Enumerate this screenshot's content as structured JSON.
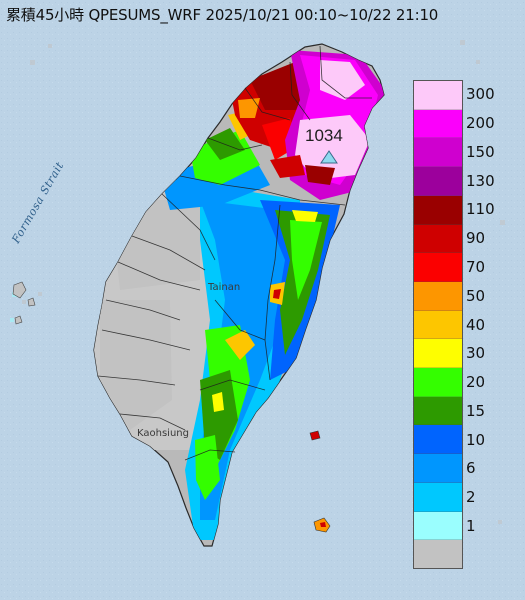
{
  "title": "累積45小時 QPESUMS_WRF 2025/10/21 00:10~10/22 21:10",
  "strait_label": "Formosa Strait",
  "place_labels": {
    "tainan": "Tainan",
    "kaohsiung": "Kaohsiung"
  },
  "peak": {
    "value": "1034",
    "marker_color": "#8fd9ef"
  },
  "legend": {
    "levels": [
      {
        "label": "300",
        "color": "#fdc9f9"
      },
      {
        "label": "200",
        "color": "#fb00fb"
      },
      {
        "label": "150",
        "color": "#cf00cf"
      },
      {
        "label": "130",
        "color": "#9c009c"
      },
      {
        "label": "110",
        "color": "#9a0000"
      },
      {
        "label": "90",
        "color": "#cf0000"
      },
      {
        "label": "70",
        "color": "#fb0000"
      },
      {
        "label": "50",
        "color": "#fd9600"
      },
      {
        "label": "40",
        "color": "#fdc600"
      },
      {
        "label": "30",
        "color": "#fefe00"
      },
      {
        "label": "20",
        "color": "#34fe00"
      },
      {
        "label": "15",
        "color": "#2d9a00"
      },
      {
        "label": "10",
        "color": "#0064fe"
      },
      {
        "label": "6",
        "color": "#0096fe"
      },
      {
        "label": "2",
        "color": "#00c8fe"
      },
      {
        "label": "1",
        "color": "#9afefe"
      },
      {
        "label": "",
        "color": "#c2c2c2"
      }
    ]
  },
  "colors": {
    "sea": "#bcd3e6",
    "land_no_rain": "#c2c2c2",
    "land_base": "#b8b8b8"
  }
}
